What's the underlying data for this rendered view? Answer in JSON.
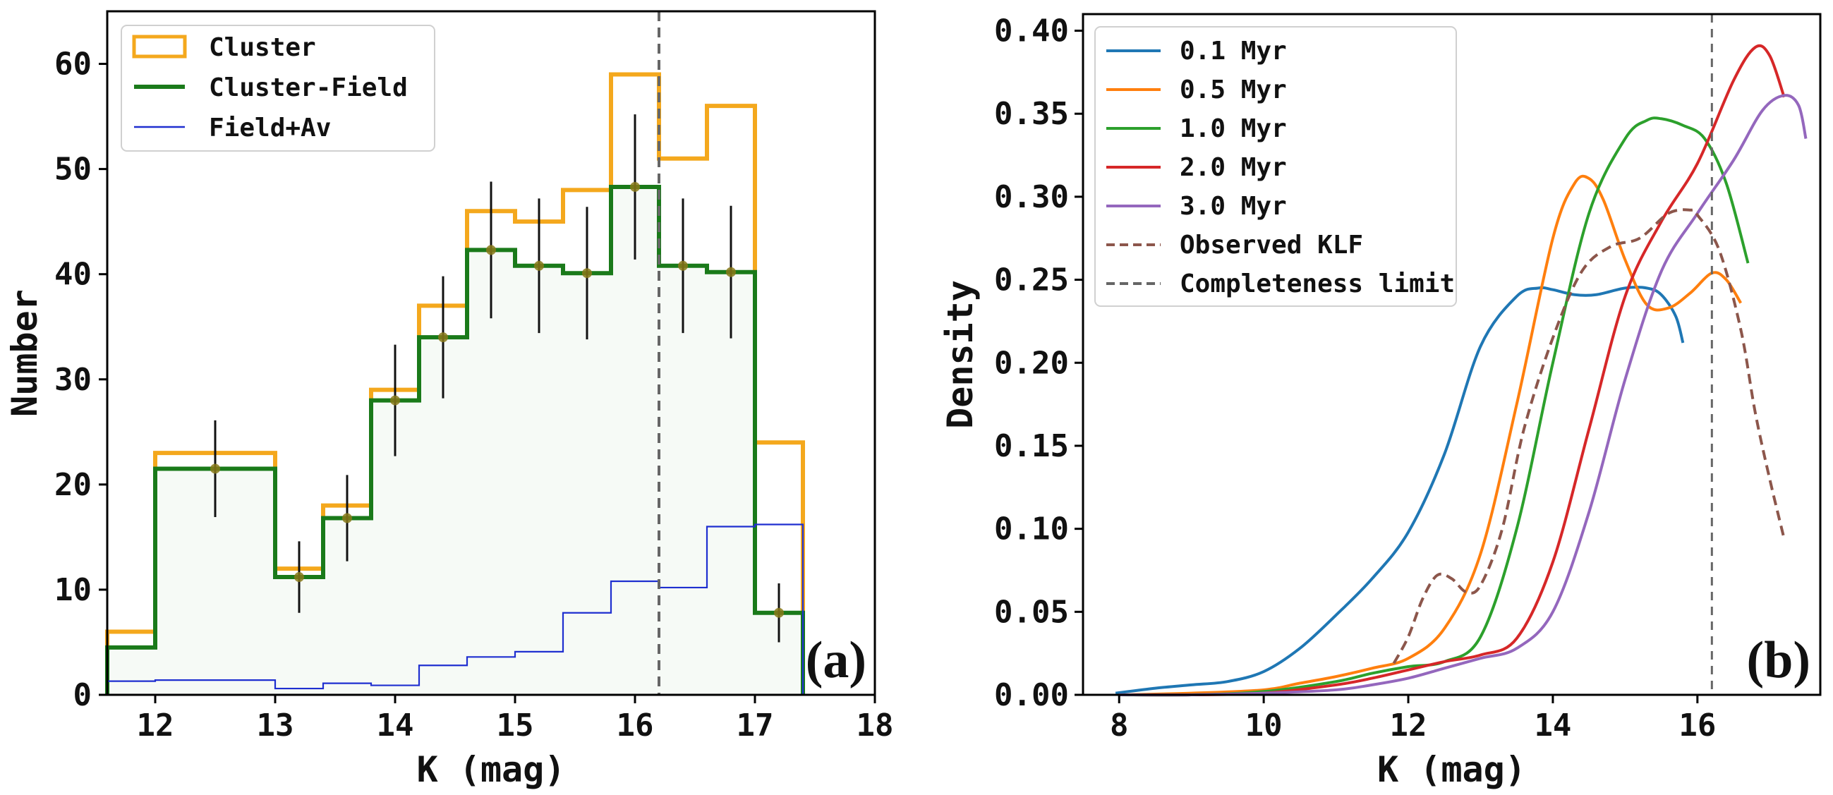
{
  "chart_data": [
    {
      "type": "histogram",
      "panel_label": "(a)",
      "xlabel": "K (mag)",
      "ylabel": "Number",
      "xlim": [
        11.6,
        18
      ],
      "ylim": [
        0,
        65
      ],
      "xticks": [
        12,
        13,
        14,
        15,
        16,
        17,
        18
      ],
      "yticks": [
        0,
        10,
        20,
        30,
        40,
        50,
        60
      ],
      "completeness_limit": 16.2,
      "legend": [
        "Cluster",
        "Cluster-Field",
        "Field+Av"
      ],
      "colors": {
        "cluster": "#f4a81d",
        "cluster_field": "#1a7a1a",
        "field_av": "#1f2fd0",
        "errorbar": "#111111",
        "marker": "#8a7a1a",
        "vline": "#666666"
      },
      "series": [
        {
          "name": "Cluster",
          "style": "step",
          "edges": [
            11.6,
            12.0,
            13.0,
            13.4,
            13.8,
            14.2,
            14.6,
            15.0,
            15.4,
            15.8,
            16.2,
            16.6,
            17.0,
            17.4
          ],
          "values": [
            6,
            23,
            12,
            18,
            29,
            37,
            46,
            45,
            48,
            59,
            51,
            56,
            24
          ]
        },
        {
          "name": "Cluster-Field",
          "style": "step",
          "edges": [
            11.6,
            12.0,
            13.0,
            13.4,
            13.8,
            14.2,
            14.6,
            15.0,
            15.4,
            15.8,
            16.2,
            16.6,
            17.0,
            17.4
          ],
          "values": [
            4.5,
            21.5,
            11.2,
            16.8,
            28,
            34,
            42.3,
            40.8,
            40.1,
            48.3,
            40.8,
            40.2,
            7.8
          ]
        },
        {
          "name": "Field+Av",
          "style": "step",
          "edges": [
            11.6,
            12.0,
            13.0,
            13.4,
            13.8,
            14.2,
            14.6,
            15.0,
            15.4,
            15.8,
            16.2,
            16.6,
            17.0,
            17.4
          ],
          "values": [
            1.3,
            1.4,
            0.6,
            1.1,
            0.9,
            2.8,
            3.6,
            4.1,
            7.8,
            10.8,
            10.2,
            16.0,
            16.2
          ]
        }
      ],
      "error_points": {
        "x": [
          12.5,
          13.2,
          13.6,
          14.0,
          14.4,
          14.8,
          15.2,
          15.6,
          16.0,
          16.4,
          16.8,
          17.2
        ],
        "y": [
          21.5,
          11.2,
          16.8,
          28.0,
          34.0,
          42.3,
          40.8,
          40.1,
          48.3,
          40.8,
          40.2,
          7.8
        ],
        "yerr": [
          4.6,
          3.4,
          4.1,
          5.3,
          5.8,
          6.5,
          6.4,
          6.3,
          6.9,
          6.4,
          6.3,
          2.8
        ]
      }
    },
    {
      "type": "line",
      "panel_label": "(b)",
      "xlabel": "K (mag)",
      "ylabel": "Density",
      "xlim": [
        7.5,
        17.7
      ],
      "ylim": [
        0,
        0.41
      ],
      "xticks": [
        8,
        10,
        12,
        14,
        16
      ],
      "yticks": [
        0.0,
        0.05,
        0.1,
        0.15,
        0.2,
        0.25,
        0.3,
        0.35,
        0.4
      ],
      "completeness_limit": 16.2,
      "legend": [
        "0.1 Myr",
        "0.5 Myr",
        "1.0 Myr",
        "2.0 Myr",
        "3.0 Myr",
        "Observed KLF",
        "Completeness limit"
      ],
      "series": [
        {
          "name": "0.1 Myr",
          "color": "#1f77b4",
          "dash": "solid",
          "x": [
            7.95,
            8.5,
            9.0,
            9.5,
            10.0,
            10.5,
            11.0,
            11.5,
            12.0,
            12.5,
            13.0,
            13.5,
            13.8,
            14.0,
            14.3,
            14.6,
            15.0,
            15.3,
            15.5,
            15.7,
            15.8
          ],
          "y": [
            0.001,
            0.004,
            0.006,
            0.008,
            0.014,
            0.028,
            0.048,
            0.07,
            0.098,
            0.145,
            0.21,
            0.24,
            0.245,
            0.244,
            0.241,
            0.241,
            0.245,
            0.245,
            0.241,
            0.228,
            0.212
          ]
        },
        {
          "name": "0.5 Myr",
          "color": "#ff7f0e",
          "dash": "solid",
          "x": [
            8.0,
            9.0,
            10.0,
            10.5,
            11.0,
            11.5,
            12.0,
            12.5,
            13.0,
            13.5,
            14.0,
            14.3,
            14.5,
            14.7,
            15.0,
            15.3,
            15.6,
            15.9,
            16.2,
            16.4,
            16.6
          ],
          "y": [
            0.0,
            0.001,
            0.003,
            0.007,
            0.011,
            0.016,
            0.022,
            0.04,
            0.085,
            0.175,
            0.275,
            0.308,
            0.311,
            0.298,
            0.262,
            0.235,
            0.233,
            0.242,
            0.254,
            0.25,
            0.236
          ]
        },
        {
          "name": "1.0 Myr",
          "color": "#2ca02c",
          "dash": "solid",
          "x": [
            8.0,
            9.0,
            10.0,
            11.0,
            11.5,
            12.0,
            12.5,
            13.0,
            13.5,
            14.0,
            14.5,
            15.0,
            15.3,
            15.5,
            15.8,
            16.1,
            16.4,
            16.7
          ],
          "y": [
            0.0,
            0.0,
            0.002,
            0.008,
            0.013,
            0.017,
            0.02,
            0.035,
            0.1,
            0.2,
            0.29,
            0.335,
            0.346,
            0.347,
            0.343,
            0.335,
            0.308,
            0.26
          ]
        },
        {
          "name": "2.0 Myr",
          "color": "#d62728",
          "dash": "solid",
          "x": [
            8.0,
            9.0,
            10.0,
            11.0,
            11.5,
            12.0,
            12.5,
            13.0,
            13.5,
            14.0,
            14.5,
            15.0,
            15.5,
            16.0,
            16.5,
            16.8,
            17.0,
            17.2
          ],
          "y": [
            0.0,
            0.0,
            0.001,
            0.006,
            0.01,
            0.015,
            0.02,
            0.024,
            0.034,
            0.08,
            0.16,
            0.24,
            0.285,
            0.32,
            0.37,
            0.39,
            0.385,
            0.36
          ]
        },
        {
          "name": "3.0 Myr",
          "color": "#9467bd",
          "dash": "solid",
          "x": [
            8.0,
            9.0,
            10.0,
            11.0,
            11.5,
            12.0,
            12.5,
            13.0,
            13.5,
            14.0,
            14.5,
            15.0,
            15.5,
            16.0,
            16.5,
            16.9,
            17.2,
            17.4,
            17.5
          ],
          "y": [
            0.0,
            0.0,
            0.001,
            0.003,
            0.006,
            0.01,
            0.016,
            0.022,
            0.028,
            0.05,
            0.11,
            0.19,
            0.255,
            0.29,
            0.322,
            0.352,
            0.361,
            0.355,
            0.335
          ]
        },
        {
          "name": "Observed KLF",
          "color": "#8c564b",
          "dash": "dashed",
          "x": [
            11.8,
            12.0,
            12.2,
            12.4,
            12.6,
            12.8,
            13.0,
            13.3,
            13.6,
            14.0,
            14.4,
            14.8,
            15.2,
            15.6,
            15.9,
            16.0,
            16.3,
            16.6,
            16.8,
            17.0,
            17.2
          ],
          "y": [
            0.019,
            0.035,
            0.058,
            0.072,
            0.07,
            0.062,
            0.066,
            0.1,
            0.16,
            0.215,
            0.255,
            0.27,
            0.275,
            0.29,
            0.292,
            0.289,
            0.268,
            0.22,
            0.17,
            0.13,
            0.094
          ]
        }
      ]
    }
  ]
}
